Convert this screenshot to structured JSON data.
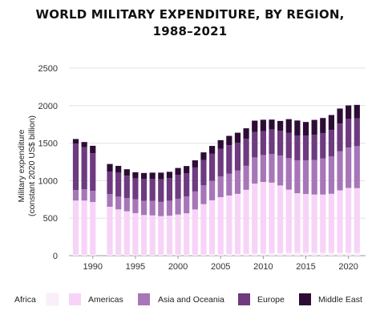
{
  "title_line1": "WORLD MILITARY EXPENDITURE, BY REGION,",
  "title_line2": "1988–2021",
  "chart_data": {
    "type": "bar",
    "stacked": true,
    "title": "WORLD MILITARY EXPENDITURE, BY REGION, 1988–2021",
    "xlabel": "",
    "ylabel_lines": [
      "Military expenditure",
      "(constant 2020 US$ billion)"
    ],
    "ylim": [
      0,
      2500
    ],
    "yticks": [
      0,
      500,
      1000,
      1500,
      2000,
      2500
    ],
    "xticks": [
      1990,
      1995,
      2000,
      2005,
      2010,
      2015,
      2020
    ],
    "grid": "horizontal",
    "legend_position": "bottom",
    "categories": [
      1988,
      1989,
      1990,
      1992,
      1993,
      1994,
      1995,
      1996,
      1997,
      1998,
      1999,
      2000,
      2001,
      2002,
      2003,
      2004,
      2005,
      2006,
      2007,
      2008,
      2009,
      2010,
      2011,
      2012,
      2013,
      2014,
      2015,
      2016,
      2017,
      2018,
      2019,
      2020,
      2021
    ],
    "series": [
      {
        "name": "Africa",
        "color": "#fbeefb",
        "values": [
          15,
          15,
          15,
          12,
          12,
          12,
          12,
          12,
          12,
          12,
          13,
          14,
          15,
          16,
          17,
          18,
          20,
          22,
          24,
          28,
          30,
          32,
          34,
          36,
          40,
          42,
          42,
          40,
          40,
          40,
          41,
          43,
          40
        ]
      },
      {
        "name": "Americas",
        "color": "#f7d4f7",
        "values": [
          720,
          720,
          700,
          640,
          605,
          580,
          555,
          530,
          525,
          515,
          520,
          535,
          550,
          600,
          670,
          720,
          760,
          780,
          800,
          850,
          930,
          950,
          940,
          900,
          840,
          790,
          780,
          775,
          775,
          785,
          830,
          860,
          860
        ]
      },
      {
        "name": "Asia and Oceania",
        "color": "#a776b8",
        "values": [
          140,
          150,
          150,
          170,
          170,
          175,
          185,
          190,
          195,
          190,
          200,
          210,
          225,
          240,
          250,
          260,
          275,
          290,
          310,
          320,
          350,
          360,
          380,
          400,
          420,
          440,
          450,
          460,
          480,
          500,
          520,
          540,
          560
        ]
      },
      {
        "name": "Europe",
        "color": "#6e3a80",
        "values": [
          620,
          560,
          500,
          300,
          320,
          300,
          280,
          290,
          290,
          300,
          300,
          320,
          310,
          320,
          340,
          360,
          370,
          380,
          370,
          360,
          340,
          320,
          330,
          330,
          340,
          330,
          330,
          335,
          340,
          350,
          370,
          380,
          370
        ]
      },
      {
        "name": "Middle East",
        "color": "#2d0d35",
        "values": [
          60,
          70,
          100,
          100,
          90,
          85,
          80,
          80,
          85,
          90,
          85,
          90,
          95,
          95,
          100,
          105,
          115,
          125,
          135,
          140,
          150,
          150,
          130,
          130,
          180,
          200,
          180,
          200,
          200,
          200,
          200,
          180,
          180
        ]
      }
    ]
  }
}
